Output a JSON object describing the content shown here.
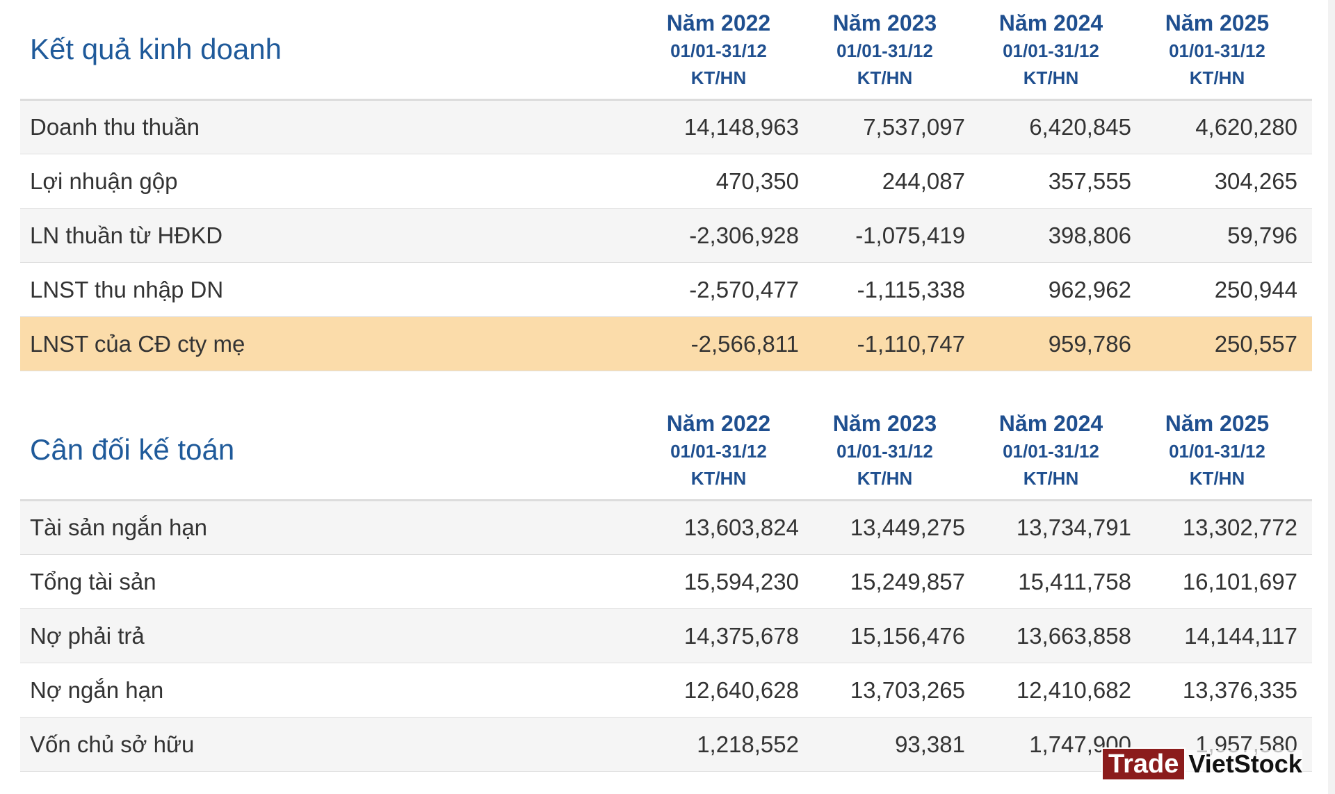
{
  "sections": [
    {
      "id": "kqkd",
      "title": "Kết quả kinh doanh",
      "columns": [
        {
          "year": "Năm 2022",
          "period": "01/01-31/12",
          "type": "KT/HN"
        },
        {
          "year": "Năm 2023",
          "period": "01/01-31/12",
          "type": "KT/HN"
        },
        {
          "year": "Năm 2024",
          "period": "01/01-31/12",
          "type": "KT/HN"
        },
        {
          "year": "Năm 2025",
          "period": "01/01-31/12",
          "type": "KT/HN"
        }
      ],
      "rows": [
        {
          "label": "Doanh thu thuần",
          "values": [
            "14,148,963",
            "7,537,097",
            "6,420,845",
            "4,620,280"
          ],
          "highlight": false
        },
        {
          "label": "Lợi nhuận gộp",
          "values": [
            "470,350",
            "244,087",
            "357,555",
            "304,265"
          ],
          "highlight": false
        },
        {
          "label": "LN thuần từ HĐKD",
          "values": [
            "-2,306,928",
            "-1,075,419",
            "398,806",
            "59,796"
          ],
          "highlight": false
        },
        {
          "label": "LNST thu nhập DN",
          "values": [
            "-2,570,477",
            "-1,115,338",
            "962,962",
            "250,944"
          ],
          "highlight": false
        },
        {
          "label": "LNST của CĐ cty mẹ",
          "values": [
            "-2,566,811",
            "-1,110,747",
            "959,786",
            "250,557"
          ],
          "highlight": true
        }
      ]
    },
    {
      "id": "cdkt",
      "title": "Cân đối kế toán",
      "columns": [
        {
          "year": "Năm 2022",
          "period": "01/01-31/12",
          "type": "KT/HN"
        },
        {
          "year": "Năm 2023",
          "period": "01/01-31/12",
          "type": "KT/HN"
        },
        {
          "year": "Năm 2024",
          "period": "01/01-31/12",
          "type": "KT/HN"
        },
        {
          "year": "Năm 2025",
          "period": "01/01-31/12",
          "type": "KT/HN"
        }
      ],
      "rows": [
        {
          "label": "Tài sản ngắn hạn",
          "values": [
            "13,603,824",
            "13,449,275",
            "13,734,791",
            "13,302,772"
          ],
          "highlight": false
        },
        {
          "label": "Tổng tài sản",
          "values": [
            "15,594,230",
            "15,249,857",
            "15,411,758",
            "16,101,697"
          ],
          "highlight": false
        },
        {
          "label": "Nợ phải trả",
          "values": [
            "14,375,678",
            "15,156,476",
            "13,663,858",
            "14,144,117"
          ],
          "highlight": false
        },
        {
          "label": "Nợ ngắn hạn",
          "values": [
            "12,640,628",
            "13,703,265",
            "12,410,682",
            "13,376,335"
          ],
          "highlight": false
        },
        {
          "label": "Vốn chủ sở hữu",
          "values": [
            "1,218,552",
            "93,381",
            "1,747,900",
            "1,957,580"
          ],
          "highlight": false
        }
      ]
    }
  ],
  "watermark": {
    "part1": "Trade",
    "part2": "VietStock"
  },
  "colors": {
    "title": "#1f5a9a",
    "header": "#1f4f8f",
    "highlight_row": "#fbdcaa",
    "stripe": "#f5f5f5"
  }
}
